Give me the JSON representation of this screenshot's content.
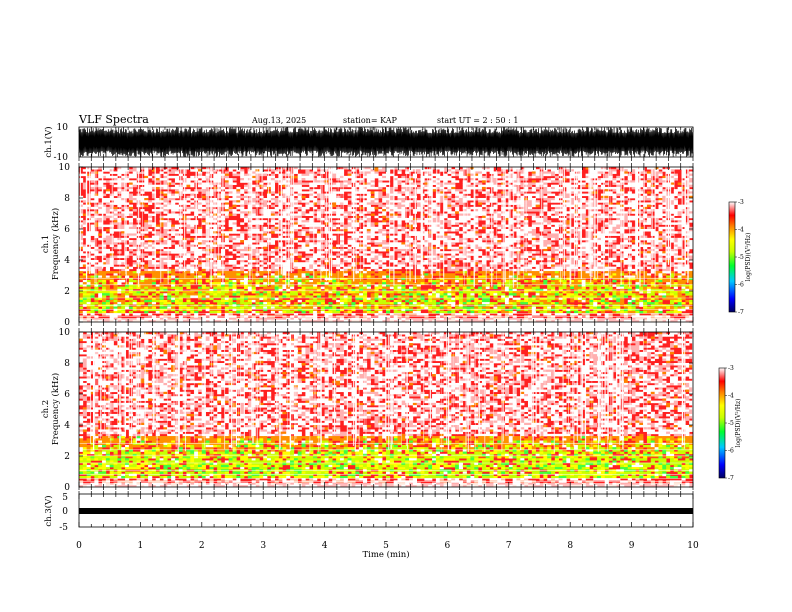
{
  "header": {
    "title": "VLF Spectra",
    "date": "Aug.13, 2025",
    "station": "station= KAP",
    "start": "start  UT  =   2  : 50 : 1"
  },
  "chart_data": [
    {
      "type": "line",
      "title": "",
      "ylabel": "ch.1(V)",
      "ylim": [
        -10,
        10
      ],
      "ytick_labels": [
        "10",
        "-10"
      ],
      "xlim": [
        0,
        10
      ],
      "description_series": [
        {
          "amplitude_range": [
            -10,
            10
          ]
        }
      ]
    },
    {
      "type": "heatmap",
      "ylabel_line1": "ch.1",
      "ylabel_line2": "Frequency  (kHz)",
      "ylim": [
        0,
        10
      ],
      "ytick_labels": [
        "0",
        "2",
        "4",
        "6",
        "8",
        "10"
      ],
      "xlim": [
        0,
        10
      ],
      "colorbar": {
        "label": "log(PSD)(V²/Hz)",
        "range": [
          -7,
          -3
        ],
        "tick_labels": [
          "-3",
          "-4",
          "-5",
          "-6",
          "-7"
        ]
      },
      "colors": [
        "#00008b",
        "#0000ff",
        "#00c0ff",
        "#00ff40",
        "#c8ff00",
        "#ffff00",
        "#ffa000",
        "#ff0000",
        "#ffffff"
      ]
    },
    {
      "type": "heatmap",
      "ylabel_line1": "ch.2",
      "ylabel_line2": "Frequency  (kHz)",
      "ylim": [
        0,
        10
      ],
      "ytick_labels": [
        "0",
        "2",
        "4",
        "6",
        "8",
        "10"
      ],
      "xlim": [
        0,
        10
      ],
      "colorbar": {
        "label": "log(PSD)(V²/Hz)",
        "range": [
          -7,
          -3
        ],
        "tick_labels": [
          "-3",
          "-4",
          "-5",
          "-6",
          "-7"
        ]
      }
    },
    {
      "type": "line",
      "ylabel": "ch.3(V)",
      "ylim": [
        -5,
        5
      ],
      "ytick_labels": [
        "5",
        "0",
        "-5"
      ],
      "xlim": [
        0,
        10
      ],
      "xlabel": "Time  (min)",
      "xtick_labels": [
        "0",
        "1",
        "2",
        "3",
        "4",
        "5",
        "6",
        "7",
        "8",
        "9",
        "10"
      ]
    }
  ]
}
